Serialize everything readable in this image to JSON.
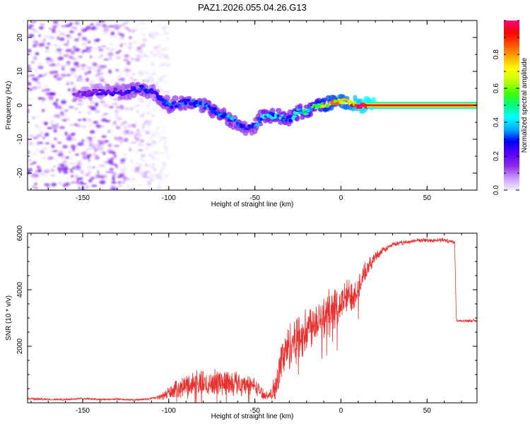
{
  "figure_title": "PAZ1.2026.055.04.26.G13",
  "colors": {
    "snr_line": "#e8302e",
    "axis": "#000000",
    "background": "#ffffff",
    "colorbar_stops": [
      "#f0f0ff",
      "#cc99ff",
      "#8a2be2",
      "#5a00ff",
      "#0000ff",
      "#00aaff",
      "#00ffff",
      "#00ff80",
      "#40ff00",
      "#c0ff00",
      "#ffff00",
      "#ffaa00",
      "#ff5000",
      "#ff0000",
      "#ff0080"
    ]
  },
  "chart_data": [
    {
      "id": "spectrogram",
      "type": "heatmap",
      "title": "PAZ1.2026.055.04.26.G13",
      "xlabel": "Height of straight line (km)",
      "ylabel": "Frequency (Hz)",
      "xlim": [
        -182,
        79
      ],
      "ylim": [
        -25,
        25
      ],
      "xticks": [
        -150,
        -100,
        -50,
        0,
        50
      ],
      "yticks": [
        -20,
        -10,
        0,
        10,
        20
      ],
      "xtick_labels": [
        "-150",
        "-100",
        "-50",
        "0",
        "50"
      ],
      "ytick_labels": [
        "-20",
        "-10",
        "0",
        "10",
        "20"
      ],
      "colorbar": {
        "label": "Normalized spectral amplitude",
        "range": [
          0,
          1
        ],
        "ticks": [
          0.0,
          0.2,
          0.4,
          0.6,
          0.8
        ],
        "tick_labels": [
          "0.0",
          "0.2",
          "0.4",
          "0.6",
          "0.8"
        ]
      },
      "ridge": {
        "x": [
          -155,
          -140,
          -125,
          -115,
          -110,
          -100,
          -90,
          -80,
          -72,
          -65,
          -58,
          -52,
          -45,
          -38,
          -30,
          -25,
          -20,
          -15,
          -10,
          -5,
          0,
          5,
          10,
          15,
          79
        ],
        "freq": [
          3,
          4,
          4,
          5,
          4,
          0,
          1,
          0,
          -2,
          -4,
          -6,
          -7,
          -3,
          -3,
          -4,
          -2,
          -2,
          0,
          0,
          1,
          1,
          1,
          0,
          0,
          0
        ],
        "amplitude": [
          0.15,
          0.2,
          0.25,
          0.3,
          0.25,
          0.3,
          0.3,
          0.3,
          0.32,
          0.35,
          0.3,
          0.28,
          0.38,
          0.38,
          0.35,
          0.4,
          0.45,
          0.5,
          0.65,
          0.7,
          0.72,
          0.75,
          0.85,
          0.95,
          0.95
        ]
      },
      "noise_region": {
        "x_range": [
          -182,
          -100
        ],
        "freq_range": [
          -25,
          25
        ],
        "amplitude_range": [
          0.02,
          0.2
        ]
      }
    },
    {
      "id": "snr",
      "type": "line",
      "xlabel": "Height of straight line (km)",
      "ylabel": "SNR (10 * v/v)",
      "xlim": [
        -182,
        79
      ],
      "ylim": [
        0,
        6000
      ],
      "xticks": [
        -150,
        -100,
        -50,
        0,
        50
      ],
      "yticks": [
        2000,
        4000,
        6000
      ],
      "xtick_labels": [
        "-150",
        "-100",
        "-50",
        "0",
        "50"
      ],
      "ytick_labels": [
        "2000",
        "4000",
        "6000"
      ],
      "series": [
        {
          "name": "SNR",
          "x": [
            -182,
            -170,
            -160,
            -150,
            -140,
            -130,
            -120,
            -110,
            -105,
            -100,
            -95,
            -90,
            -85,
            -80,
            -75,
            -70,
            -65,
            -60,
            -55,
            -50,
            -45,
            -42,
            -40,
            -38,
            -36,
            -34,
            -32,
            -30,
            -28,
            -25,
            -22,
            -20,
            -18,
            -15,
            -12,
            -10,
            -8,
            -5,
            -3,
            0,
            3,
            5,
            8,
            10,
            15,
            20,
            25,
            30,
            35,
            40,
            45,
            50,
            55,
            60,
            65,
            66,
            67,
            70,
            75,
            79
          ],
          "mean": [
            150,
            120,
            120,
            150,
            120,
            130,
            100,
            150,
            200,
            350,
            500,
            600,
            700,
            650,
            700,
            750,
            750,
            700,
            650,
            600,
            300,
            250,
            300,
            600,
            1200,
            1600,
            1800,
            2000,
            2200,
            2300,
            2400,
            2500,
            2800,
            2900,
            3100,
            3000,
            3200,
            3400,
            3300,
            3500,
            3700,
            3800,
            3900,
            4100,
            4700,
            5200,
            5400,
            5600,
            5650,
            5700,
            5750,
            5750,
            5750,
            5750,
            5700,
            5700,
            2900,
            2900,
            2900,
            2900
          ],
          "spread": [
            80,
            60,
            60,
            60,
            50,
            50,
            50,
            60,
            150,
            400,
            500,
            700,
            800,
            800,
            700,
            800,
            800,
            700,
            600,
            500,
            300,
            150,
            500,
            900,
            1200,
            1300,
            1300,
            1400,
            1500,
            1500,
            1300,
            1400,
            1400,
            1300,
            1300,
            1500,
            1400,
            1200,
            1200,
            1100,
            1100,
            1100,
            1000,
            900,
            500,
            300,
            200,
            150,
            130,
            120,
            120,
            120,
            120,
            120,
            120,
            120,
            100,
            80,
            80,
            80
          ]
        }
      ]
    }
  ]
}
